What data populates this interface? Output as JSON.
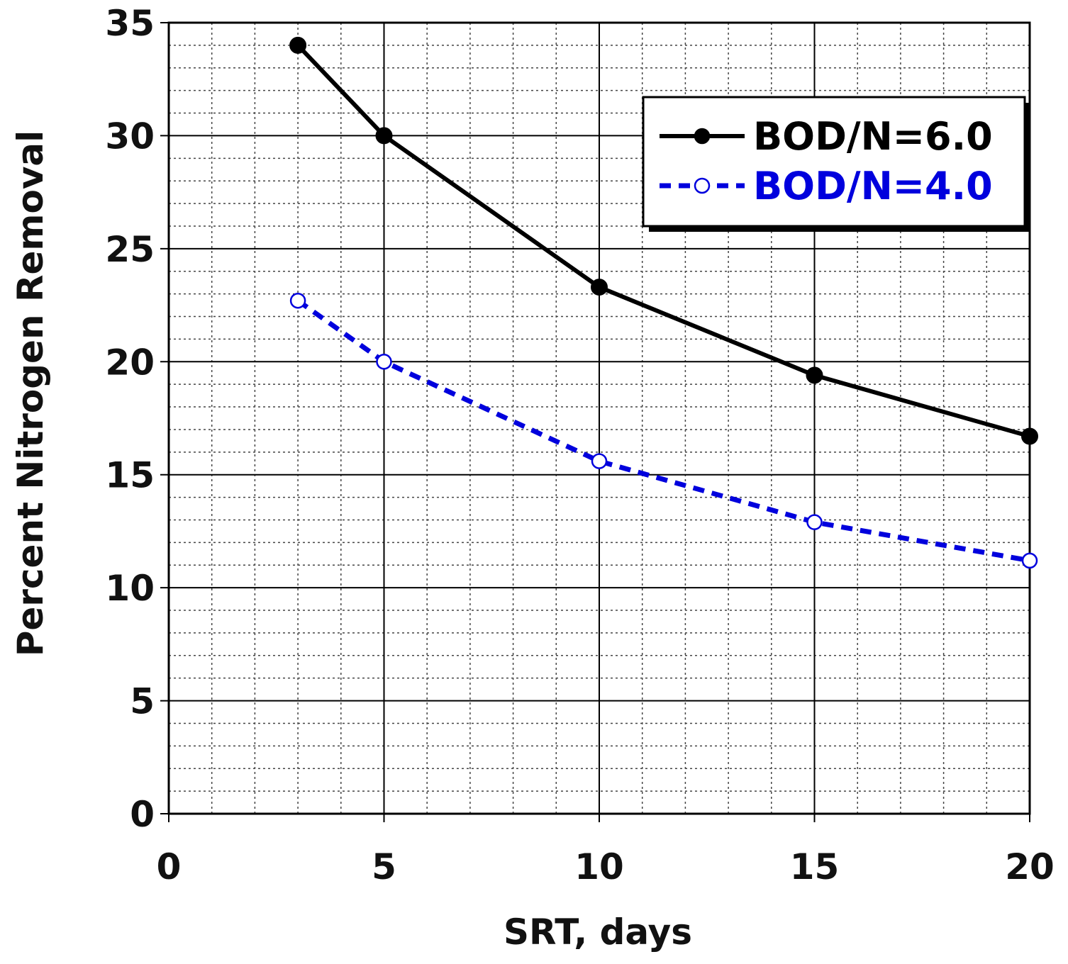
{
  "chart_data": {
    "type": "line",
    "title": "",
    "xlabel": "SRT, days",
    "ylabel": "Percent Nitrogen Removal",
    "xlim": [
      0,
      20
    ],
    "ylim": [
      0,
      35
    ],
    "x_major_ticks": [
      0,
      5,
      10,
      15,
      20
    ],
    "y_major_ticks": [
      0,
      5,
      10,
      15,
      20,
      25,
      30,
      35
    ],
    "x_minor_step": 1,
    "y_minor_step": 1,
    "grid": true,
    "legend_position": "top-right",
    "series": [
      {
        "name": "BOD/N=6.0",
        "color": "#000000",
        "line_style": "solid",
        "marker": "filled-circle",
        "x": [
          3,
          5,
          10,
          15,
          20
        ],
        "y": [
          34.0,
          30.0,
          23.3,
          19.4,
          16.7
        ]
      },
      {
        "name": "BOD/N=4.0",
        "color": "#0000dd",
        "line_style": "dashed",
        "marker": "open-circle",
        "x": [
          3,
          5,
          10,
          15,
          20
        ],
        "y": [
          22.7,
          20.0,
          15.6,
          12.9,
          11.2
        ]
      }
    ]
  }
}
